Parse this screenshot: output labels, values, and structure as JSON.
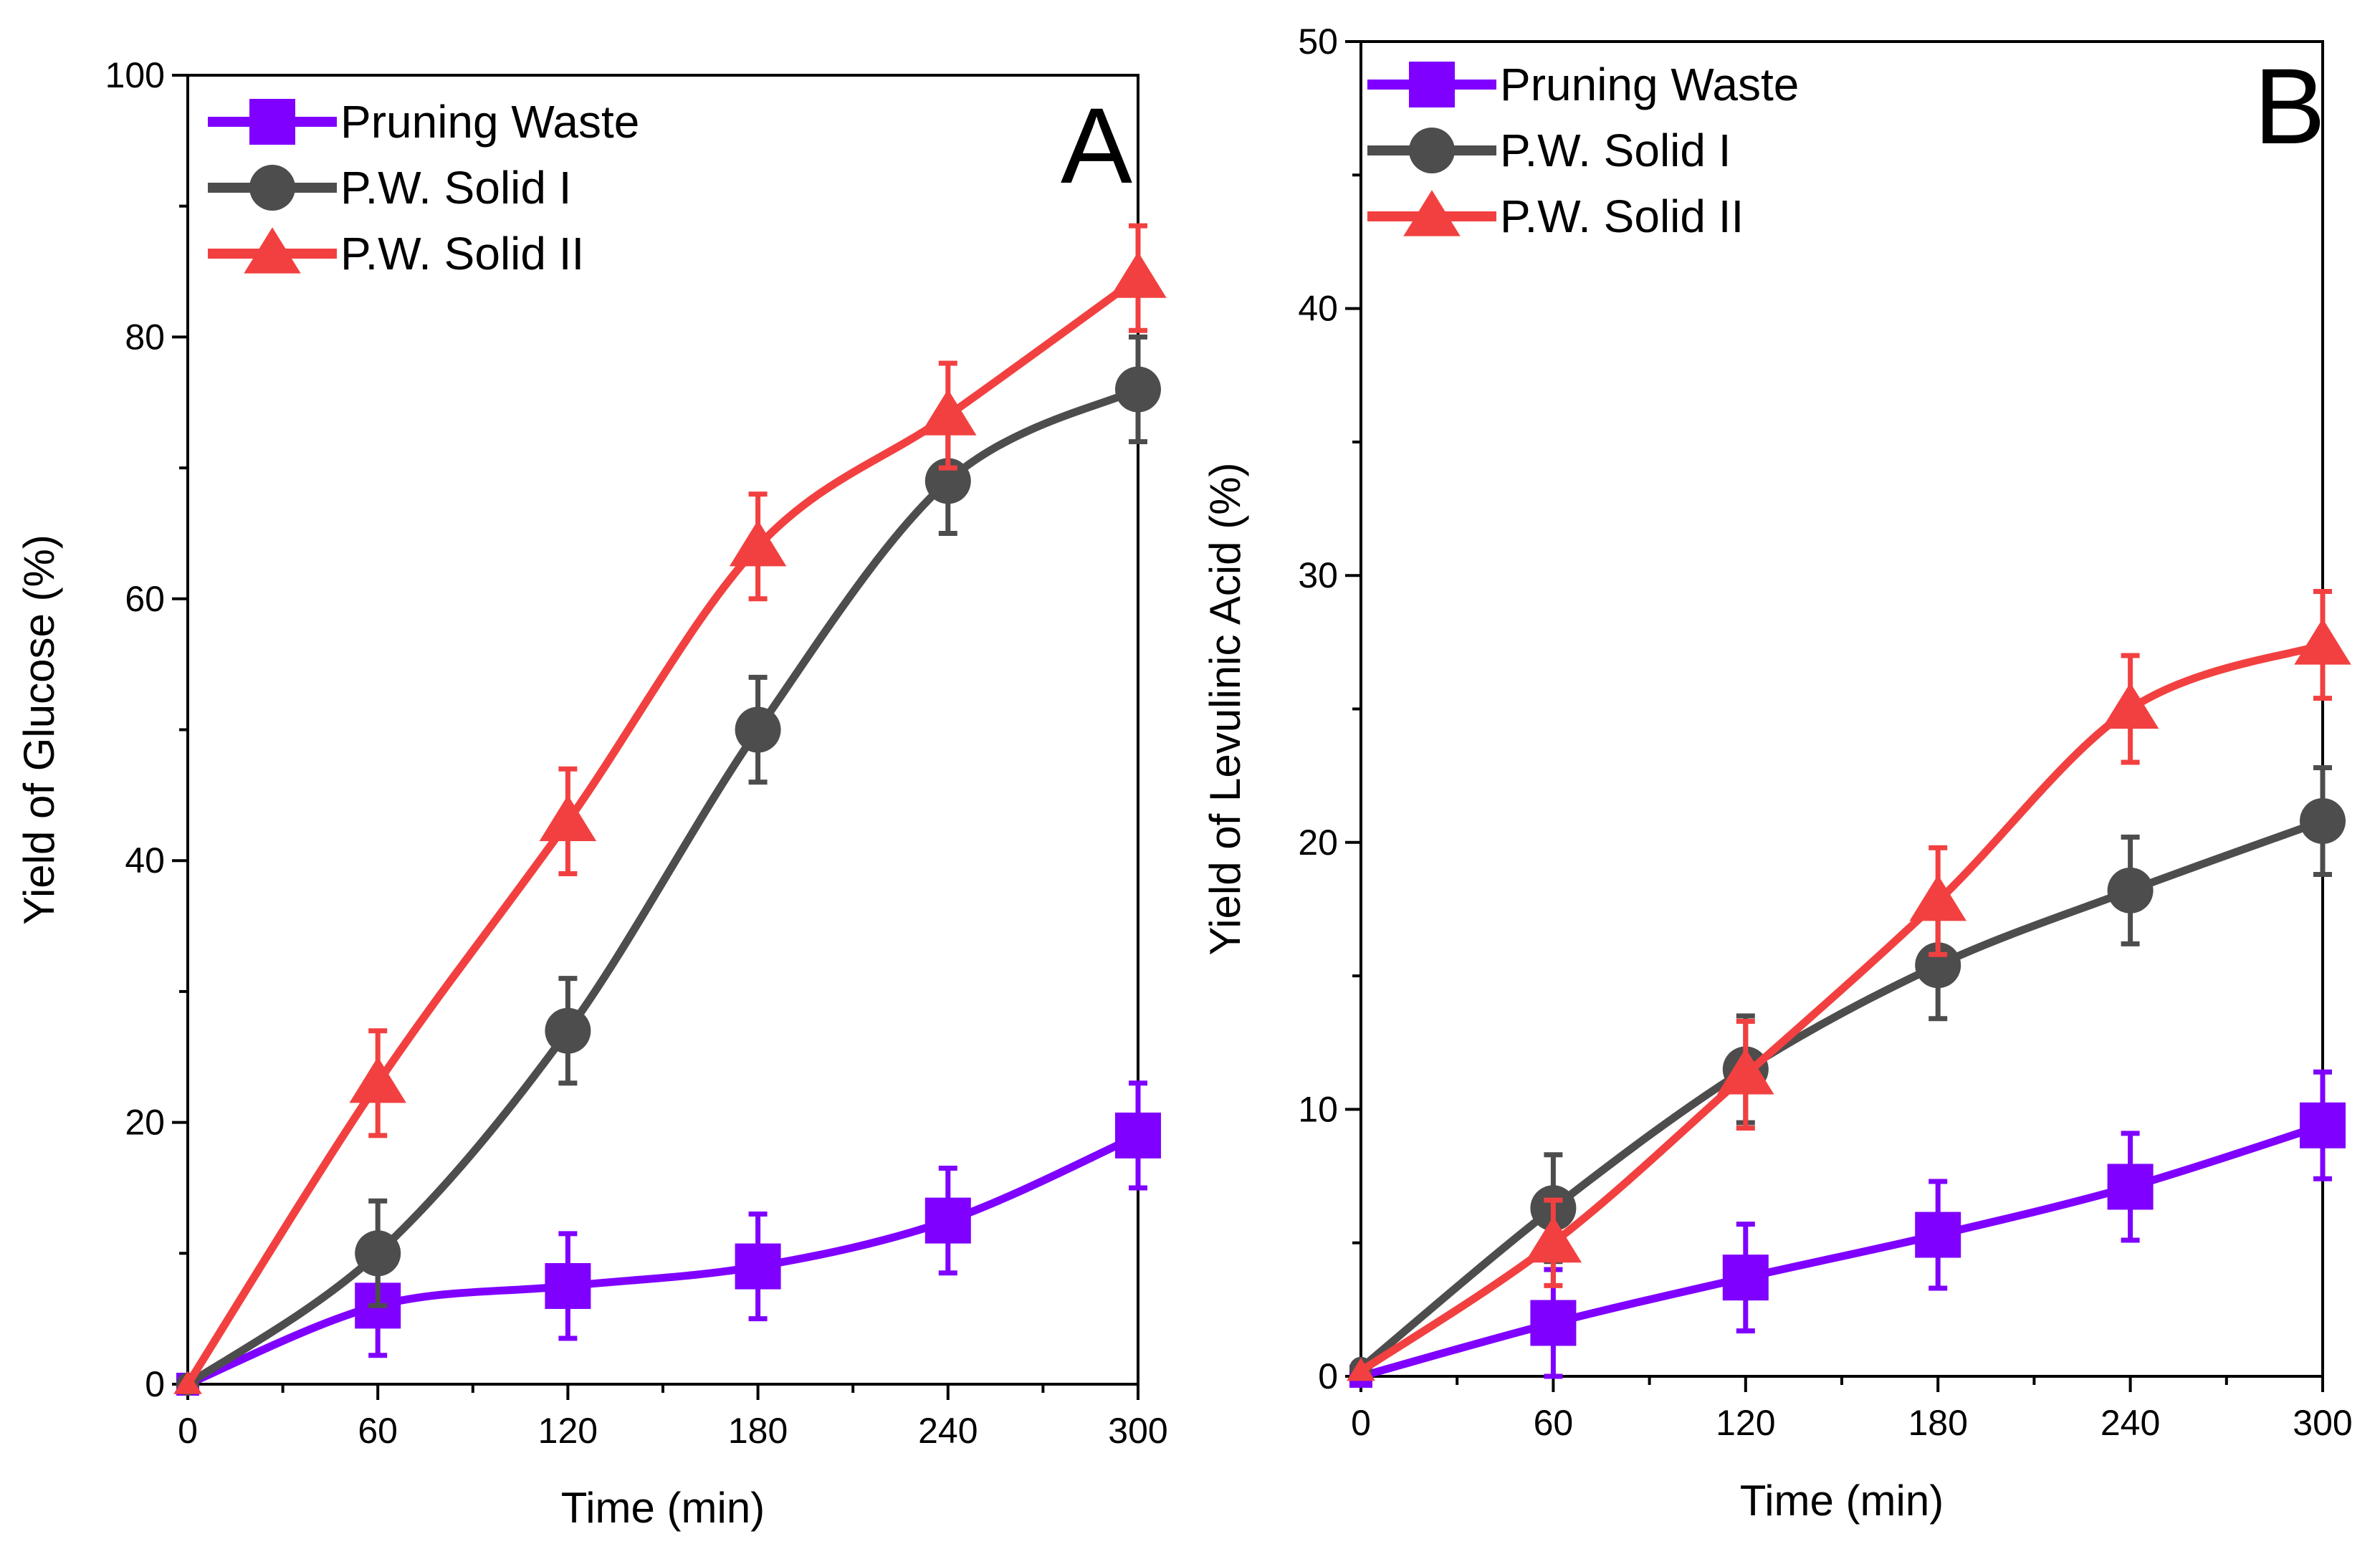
{
  "chart_data": [
    {
      "type": "line",
      "panel_label": "A",
      "xlabel": "Time (min)",
      "ylabel": "Yield of Glucose (%)",
      "xlim": [
        0,
        300
      ],
      "ylim": [
        0,
        100
      ],
      "x_ticks": [
        0,
        60,
        120,
        180,
        240,
        300
      ],
      "y_ticks": [
        0,
        20,
        40,
        60,
        80,
        100
      ],
      "x_tick_labels": [
        "0",
        "60",
        "120",
        "180",
        "240",
        "300"
      ],
      "y_tick_labels": [
        "0",
        "20",
        "40",
        "60",
        "80",
        "100"
      ],
      "grid": false,
      "legend_position": "top-left",
      "x": [
        0,
        60,
        120,
        180,
        240,
        300
      ],
      "series": [
        {
          "name": "Pruning Waste",
          "color": "#7f00ff",
          "marker": "square",
          "values": [
            0,
            6,
            7.5,
            9,
            12.5,
            19
          ],
          "errors": [
            0,
            3.8,
            4,
            4,
            4,
            4
          ]
        },
        {
          "name": "P.W. Solid I",
          "color": "#4d4d4d",
          "marker": "circle",
          "values": [
            0,
            10,
            27,
            50,
            69,
            76
          ],
          "errors": [
            0,
            4,
            4,
            4,
            4,
            4
          ]
        },
        {
          "name": "P.W. Solid II",
          "color": "#f24040",
          "marker": "triangle",
          "values": [
            0,
            23,
            43,
            64,
            74,
            84.5
          ],
          "errors": [
            0,
            4,
            4,
            4,
            4,
            4
          ]
        }
      ]
    },
    {
      "type": "line",
      "panel_label": "B",
      "xlabel": "Time (min)",
      "ylabel": "Yield of Levulinic Acid (%)",
      "xlim": [
        0,
        300
      ],
      "ylim": [
        0,
        50
      ],
      "x_ticks": [
        0,
        60,
        120,
        180,
        240,
        300
      ],
      "y_ticks": [
        0,
        10,
        20,
        30,
        40,
        50
      ],
      "x_tick_labels": [
        "0",
        "60",
        "120",
        "180",
        "240",
        "300"
      ],
      "y_tick_labels": [
        "0",
        "10",
        "20",
        "30",
        "40",
        "50"
      ],
      "grid": false,
      "legend_position": "top-left",
      "x": [
        0,
        60,
        120,
        180,
        240,
        300
      ],
      "series": [
        {
          "name": "Pruning Waste",
          "color": "#7f00ff",
          "marker": "square",
          "values": [
            0,
            2,
            3.7,
            5.3,
            7.1,
            9.4
          ],
          "errors": [
            0,
            2,
            2,
            2,
            2,
            2
          ]
        },
        {
          "name": "P.W. Solid I",
          "color": "#4d4d4d",
          "marker": "circle",
          "values": [
            0.3,
            6.3,
            11.5,
            15.4,
            18.2,
            20.8
          ],
          "errors": [
            0,
            2,
            2,
            2,
            2,
            2
          ]
        },
        {
          "name": "P.W. Solid II",
          "color": "#f24040",
          "marker": "triangle",
          "values": [
            0.2,
            5,
            11.3,
            17.8,
            25,
            27.4
          ],
          "errors": [
            0,
            1.6,
            2,
            2,
            2,
            2
          ]
        }
      ]
    }
  ]
}
